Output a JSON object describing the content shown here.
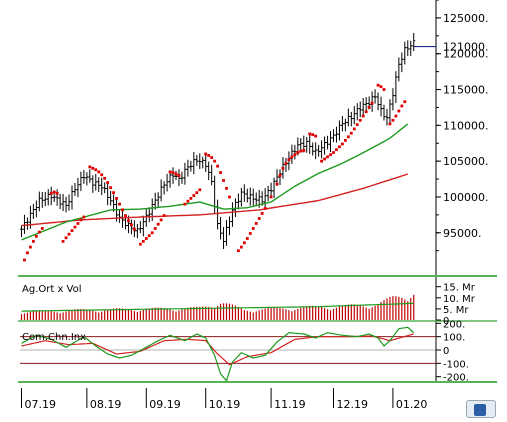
{
  "chart_data": [
    {
      "type": "line",
      "panel": "price",
      "y_ticks": [
        "95000.",
        "100000.",
        "105000.",
        "110000.",
        "115000.",
        "120000.",
        "125000."
      ],
      "y_tick_values": [
        95000,
        100000,
        105000,
        110000,
        115000,
        120000,
        125000
      ],
      "ylim": [
        90500,
        127500
      ],
      "last_price_label": "121000.",
      "last_price": 121000,
      "x_labels": [
        "07.19",
        "08.19",
        "09.19",
        "10.19",
        "11.19",
        "12.19",
        "01.20"
      ],
      "x_label_positions": [
        0,
        22,
        42,
        62,
        84,
        105,
        125
      ],
      "n_bars": 140,
      "series": [
        {
          "kind": "ohlc_close",
          "color": "#000000",
          "anchors": [
            [
              0,
              95500
            ],
            [
              6,
              99500
            ],
            [
              10,
              100200
            ],
            [
              15,
              98800
            ],
            [
              18,
              101200
            ],
            [
              21,
              103000
            ],
            [
              24,
              102000
            ],
            [
              27,
              101500
            ],
            [
              30,
              99500
            ],
            [
              33,
              97000
            ],
            [
              36,
              96000
            ],
            [
              39,
              95200
            ],
            [
              42,
              97200
            ],
            [
              45,
              99500
            ],
            [
              48,
              101800
            ],
            [
              51,
              103200
            ],
            [
              53,
              102400
            ],
            [
              56,
              104200
            ],
            [
              59,
              105200
            ],
            [
              62,
              104600
            ],
            [
              64,
              102000
            ],
            [
              66,
              96000
            ],
            [
              68,
              94000
            ],
            [
              71,
              98200
            ],
            [
              74,
              100500
            ],
            [
              78,
              99800
            ],
            [
              81,
              99600
            ],
            [
              84,
              101200
            ],
            [
              87,
              103500
            ],
            [
              90,
              105500
            ],
            [
              93,
              107200
            ],
            [
              96,
              107500
            ],
            [
              99,
              106200
            ],
            [
              102,
              107300
            ],
            [
              105,
              108500
            ],
            [
              108,
              110300
            ],
            [
              111,
              111200
            ],
            [
              114,
              112500
            ],
            [
              117,
              113200
            ],
            [
              119,
              114100
            ],
            [
              121,
              112000
            ],
            [
              123,
              111000
            ],
            [
              125,
              114500
            ],
            [
              127,
              118500
            ],
            [
              129,
              120500
            ],
            [
              131,
              121200
            ],
            [
              132,
              121500
            ]
          ]
        },
        {
          "kind": "moving_average",
          "color": "#d42020",
          "anchors": [
            [
              0,
              96000
            ],
            [
              20,
              96800
            ],
            [
              40,
              97200
            ],
            [
              60,
              97500
            ],
            [
              80,
              98200
            ],
            [
              100,
              99500
            ],
            [
              115,
              101200
            ],
            [
              130,
              103200
            ]
          ]
        },
        {
          "kind": "moving_average",
          "color": "#1e9a1e",
          "anchors": [
            [
              0,
              94000
            ],
            [
              15,
              96500
            ],
            [
              30,
              98200
            ],
            [
              40,
              98300
            ],
            [
              50,
              98700
            ],
            [
              60,
              99300
            ],
            [
              68,
              98300
            ],
            [
              76,
              98500
            ],
            [
              84,
              99300
            ],
            [
              92,
              101500
            ],
            [
              100,
              103300
            ],
            [
              108,
              104700
            ],
            [
              116,
              106400
            ],
            [
              124,
              108200
            ],
            [
              130,
              110200
            ]
          ]
        },
        {
          "kind": "parabolic_sar",
          "color": "#e00000",
          "anchors": [
            [
              1,
              91200
            ],
            [
              2,
              92200
            ],
            [
              3,
              93000
            ],
            [
              4,
              93800
            ],
            [
              5,
              94500
            ],
            [
              6,
              95100
            ],
            [
              7,
              95600
            ],
            [
              10,
              100500
            ],
            [
              11,
              100700
            ],
            [
              12,
              100500
            ],
            [
              14,
              93800
            ],
            [
              15,
              94300
            ],
            [
              16,
              94800
            ],
            [
              17,
              95300
            ],
            [
              18,
              95800
            ],
            [
              19,
              96300
            ],
            [
              20,
              96800
            ],
            [
              21,
              97200
            ],
            [
              23,
              104200
            ],
            [
              24,
              104000
            ],
            [
              25,
              103800
            ],
            [
              26,
              103500
            ],
            [
              27,
              103100
            ],
            [
              28,
              102600
            ],
            [
              29,
              102000
            ],
            [
              30,
              101300
            ],
            [
              31,
              100600
            ],
            [
              32,
              99800
            ],
            [
              33,
              99000
            ],
            [
              34,
              98200
            ],
            [
              35,
              97400
            ],
            [
              36,
              96700
            ],
            [
              37,
              96100
            ],
            [
              38,
              95500
            ],
            [
              40,
              93400
            ],
            [
              41,
              93800
            ],
            [
              42,
              94200
            ],
            [
              43,
              94600
            ],
            [
              44,
              95000
            ],
            [
              45,
              95600
            ],
            [
              46,
              96200
            ],
            [
              47,
              96800
            ],
            [
              48,
              97400
            ],
            [
              50,
              103500
            ],
            [
              51,
              103400
            ],
            [
              52,
              103200
            ],
            [
              53,
              103000
            ],
            [
              55,
              99000
            ],
            [
              56,
              99400
            ],
            [
              57,
              99800
            ],
            [
              58,
              100200
            ],
            [
              59,
              100600
            ],
            [
              60,
              101000
            ],
            [
              62,
              106000
            ],
            [
              63,
              105800
            ],
            [
              64,
              105500
            ],
            [
              65,
              105000
            ],
            [
              66,
              104300
            ],
            [
              67,
              103400
            ],
            [
              68,
              102300
            ],
            [
              69,
              101200
            ],
            [
              70,
              100000
            ],
            [
              73,
              92500
            ],
            [
              74,
              93000
            ],
            [
              75,
              93600
            ],
            [
              76,
              94200
            ],
            [
              77,
              94900
            ],
            [
              78,
              95600
            ],
            [
              79,
              96300
            ],
            [
              80,
              97000
            ],
            [
              81,
              97700
            ],
            [
              82,
              98400
            ],
            [
              84,
              100000
            ],
            [
              86,
              101800
            ],
            [
              87,
              103000
            ],
            [
              88,
              104000
            ],
            [
              89,
              104700
            ],
            [
              90,
              105200
            ],
            [
              91,
              105600
            ],
            [
              92,
              105900
            ],
            [
              93,
              106200
            ],
            [
              94,
              106400
            ],
            [
              95,
              106500
            ],
            [
              97,
              108800
            ],
            [
              98,
              108700
            ],
            [
              99,
              108500
            ],
            [
              101,
              105000
            ],
            [
              102,
              105300
            ],
            [
              103,
              105600
            ],
            [
              104,
              105900
            ],
            [
              105,
              106200
            ],
            [
              106,
              106600
            ],
            [
              107,
              107000
            ],
            [
              108,
              107400
            ],
            [
              109,
              107900
            ],
            [
              110,
              108400
            ],
            [
              111,
              108900
            ],
            [
              112,
              109500
            ],
            [
              113,
              110100
            ],
            [
              114,
              110700
            ],
            [
              115,
              111300
            ],
            [
              116,
              111900
            ],
            [
              117,
              112500
            ],
            [
              118,
              113100
            ],
            [
              120,
              115600
            ],
            [
              121,
              115400
            ],
            [
              122,
              115000
            ],
            [
              124,
              110200
            ],
            [
              125,
              110700
            ],
            [
              126,
              111300
            ],
            [
              127,
              112000
            ],
            [
              128,
              112700
            ],
            [
              129,
              113300
            ]
          ]
        }
      ]
    },
    {
      "type": "bar",
      "panel": "volume",
      "title": "Ag.Ort x Vol",
      "y_ticks": [
        "15. Mr",
        "10. Mr",
        "5. Mr",
        "0"
      ],
      "y_tick_values": [
        15,
        10,
        5,
        0
      ],
      "ylim": [
        0,
        18
      ],
      "series": [
        {
          "kind": "volume",
          "color": "#c00000",
          "anchors": [
            [
              0,
              4
            ],
            [
              20,
              5
            ],
            [
              40,
              5.5
            ],
            [
              60,
              6
            ],
            [
              67,
              9
            ],
            [
              75,
              5
            ],
            [
              90,
              6
            ],
            [
              110,
              7
            ],
            [
              120,
              8
            ],
            [
              125,
              11
            ],
            [
              130,
              13
            ],
            [
              132,
              14
            ]
          ]
        },
        {
          "kind": "moving_average",
          "color": "#1e9a1e",
          "anchors": [
            [
              0,
              4
            ],
            [
              50,
              5
            ],
            [
              100,
              6
            ],
            [
              132,
              7.5
            ]
          ]
        }
      ]
    },
    {
      "type": "line",
      "panel": "indicator",
      "title": "Com.Chn.Inx",
      "y_ticks": [
        "200.",
        "100.",
        "0",
        "-100.",
        "-200."
      ],
      "y_tick_values": [
        200,
        100,
        0,
        -100,
        -200
      ],
      "ylim": [
        -210,
        210
      ],
      "series": [
        {
          "kind": "cci",
          "color": "#1e9a1e",
          "anchors": [
            [
              0,
              50
            ],
            [
              5,
              110
            ],
            [
              10,
              80
            ],
            [
              15,
              20
            ],
            [
              18,
              60
            ],
            [
              21,
              100
            ],
            [
              25,
              30
            ],
            [
              29,
              -30
            ],
            [
              33,
              -60
            ],
            [
              37,
              -40
            ],
            [
              42,
              20
            ],
            [
              46,
              70
            ],
            [
              50,
              110
            ],
            [
              55,
              70
            ],
            [
              59,
              120
            ],
            [
              62,
              90
            ],
            [
              65,
              -40
            ],
            [
              67,
              -180
            ],
            [
              69,
              -230
            ],
            [
              71,
              -90
            ],
            [
              74,
              -20
            ],
            [
              78,
              -60
            ],
            [
              82,
              -40
            ],
            [
              86,
              60
            ],
            [
              90,
              130
            ],
            [
              95,
              120
            ],
            [
              99,
              90
            ],
            [
              103,
              130
            ],
            [
              108,
              110
            ],
            [
              113,
              100
            ],
            [
              117,
              120
            ],
            [
              120,
              90
            ],
            [
              122,
              30
            ],
            [
              124,
              70
            ],
            [
              127,
              160
            ],
            [
              130,
              170
            ],
            [
              132,
              130
            ]
          ]
        },
        {
          "kind": "signal",
          "color": "#d42020",
          "anchors": [
            [
              0,
              30
            ],
            [
              8,
              70
            ],
            [
              16,
              40
            ],
            [
              24,
              50
            ],
            [
              32,
              -30
            ],
            [
              40,
              -10
            ],
            [
              48,
              70
            ],
            [
              56,
              80
            ],
            [
              62,
              70
            ],
            [
              66,
              -30
            ],
            [
              70,
              -110
            ],
            [
              76,
              -50
            ],
            [
              84,
              -20
            ],
            [
              92,
              80
            ],
            [
              100,
              100
            ],
            [
              110,
              100
            ],
            [
              118,
              105
            ],
            [
              124,
              70
            ],
            [
              132,
              120
            ]
          ]
        }
      ]
    }
  ]
}
